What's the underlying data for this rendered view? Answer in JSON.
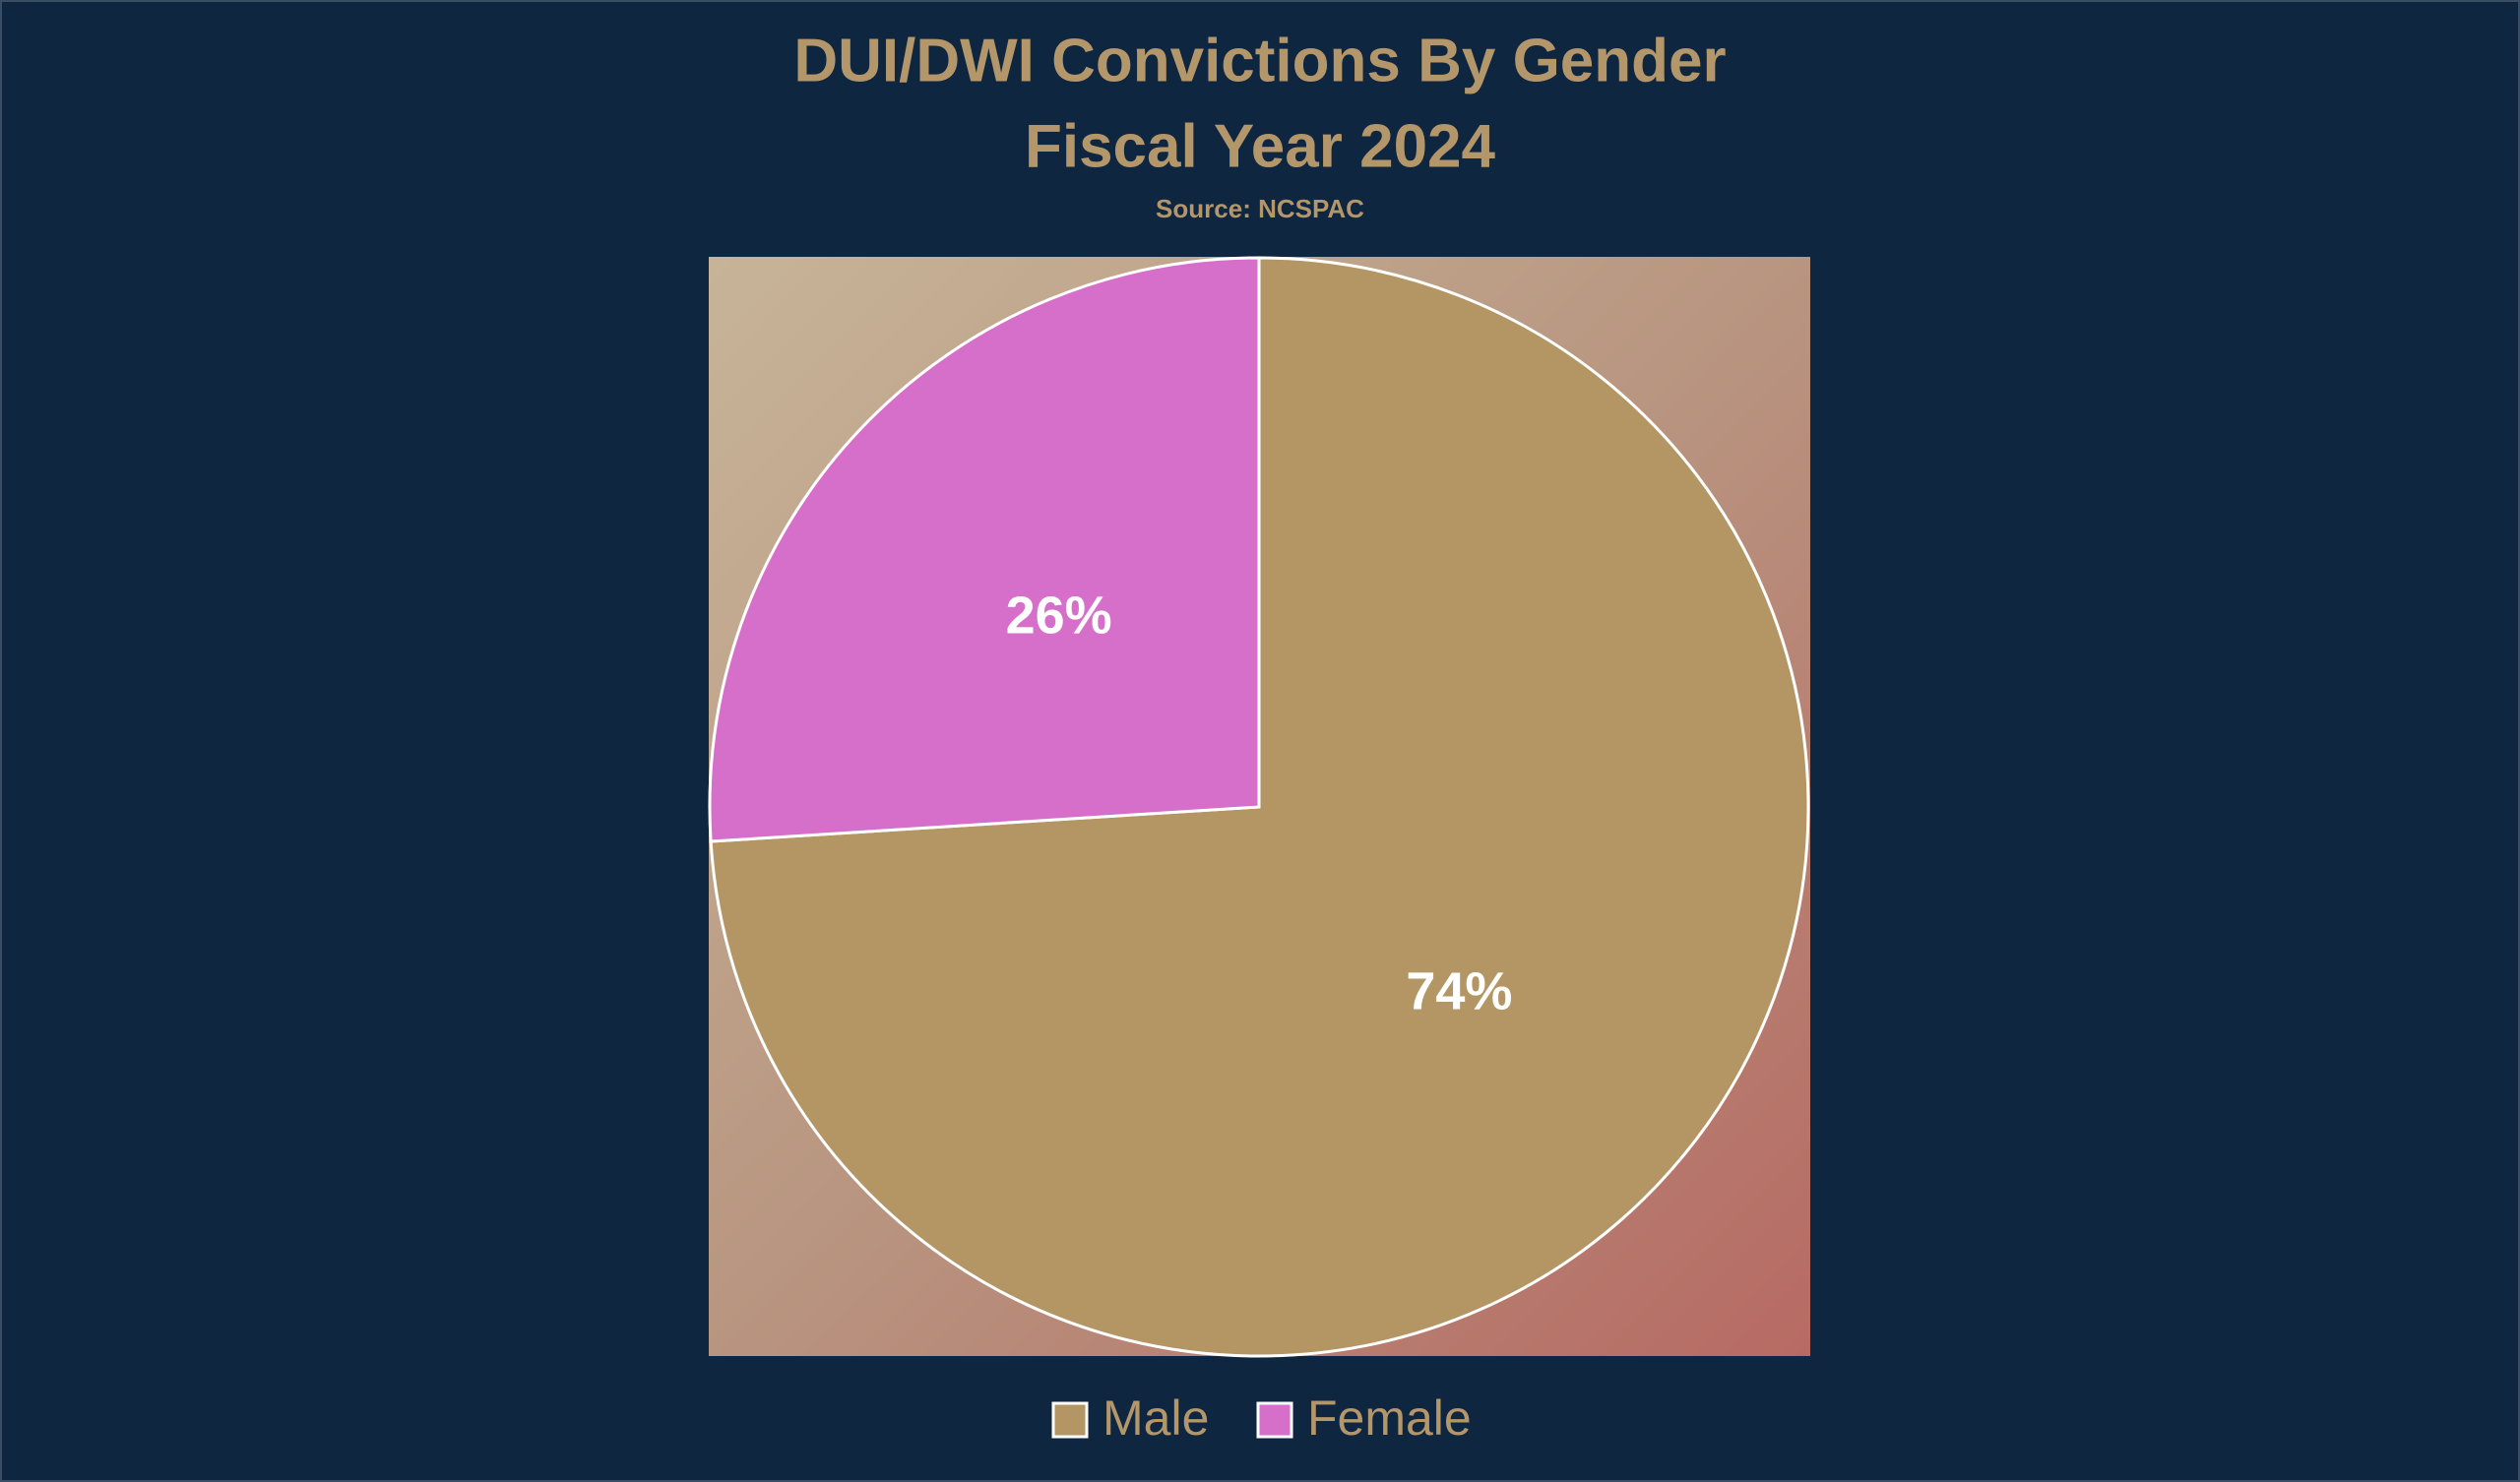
{
  "chart_data": {
    "type": "pie",
    "title": "DUI/DWI Convictions By Gender",
    "subtitle": "Fiscal Year 2024",
    "source": "Source: NCSPAC",
    "categories": [
      "Male",
      "Female"
    ],
    "values": [
      74,
      26
    ],
    "value_labels": [
      "74%",
      "26%"
    ],
    "colors": [
      "#b39664",
      "#d66fc9"
    ],
    "legend": "bottom"
  }
}
